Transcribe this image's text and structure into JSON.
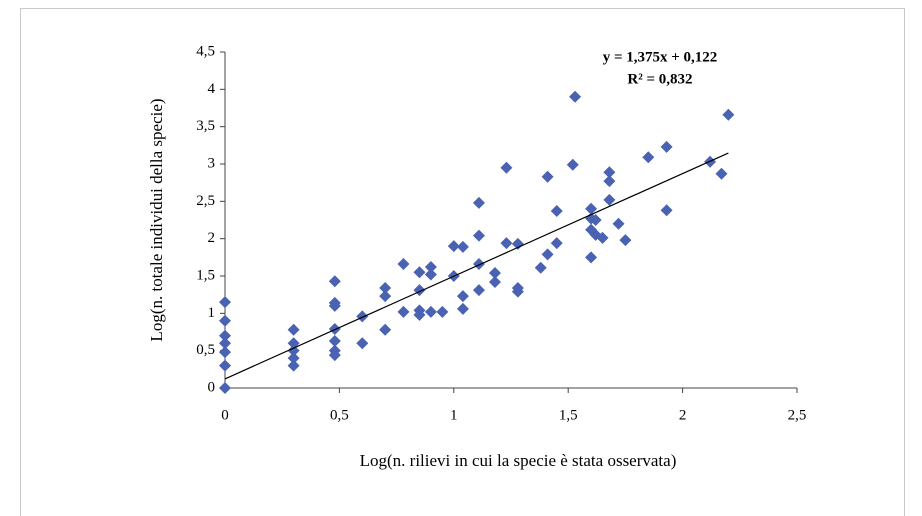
{
  "chart_data": {
    "type": "scatter",
    "x_label": "Log(n. rilievi in cui la specie è stata osservata)",
    "y_label": "Log(n. totale individui della specie)",
    "x": [
      0,
      0,
      0,
      0,
      0,
      0,
      0,
      0.3,
      0.3,
      0.3,
      0.3,
      0.3,
      0.48,
      0.48,
      0.48,
      0.48,
      0.48,
      0.48,
      0.48,
      0.6,
      0.6,
      0.7,
      0.7,
      0.7,
      0.78,
      0.78,
      0.85,
      0.85,
      0.85,
      0.85,
      0.9,
      0.9,
      0.9,
      0.95,
      1.0,
      1.0,
      1.04,
      1.04,
      1.04,
      1.11,
      1.11,
      1.11,
      1.11,
      1.18,
      1.18,
      1.23,
      1.23,
      1.28,
      1.28,
      1.28,
      1.38,
      1.41,
      1.41,
      1.45,
      1.45,
      1.52,
      1.53,
      1.6,
      1.6,
      1.6,
      1.6,
      1.62,
      1.62,
      1.65,
      1.68,
      1.68,
      1.68,
      1.72,
      1.75,
      1.85,
      1.93,
      1.93,
      2.12,
      2.17,
      2.2
    ],
    "values": [
      1.15,
      0.9,
      0.7,
      0.6,
      0.48,
      0.3,
      0,
      0.78,
      0.6,
      0.5,
      0.4,
      0.3,
      1.43,
      1.14,
      1.1,
      0.79,
      0.63,
      0.5,
      0.44,
      0.96,
      0.6,
      1.34,
      1.23,
      0.78,
      1.66,
      1.02,
      1.31,
      1.55,
      1.04,
      0.98,
      1.62,
      1.52,
      1.02,
      1.02,
      1.9,
      1.5,
      1.89,
      1.23,
      1.06,
      2.48,
      2.04,
      1.66,
      1.31,
      1.54,
      1.42,
      2.95,
      1.94,
      1.93,
      1.34,
      1.29,
      1.61,
      2.83,
      1.79,
      2.37,
      1.94,
      2.99,
      3.9,
      2.4,
      2.27,
      2.12,
      1.75,
      2.05,
      2.25,
      2.01,
      2.89,
      2.77,
      2.52,
      2.2,
      1.98,
      3.09,
      3.23,
      2.38,
      3.03,
      2.87,
      3.66
    ],
    "color": "#4a62b2",
    "xlim": [
      0,
      2.5
    ],
    "ylim": [
      0,
      4.5
    ],
    "xticks": [
      0,
      {
        "value": 0.5,
        "label": "0,5"
      },
      1,
      {
        "value": 1.5,
        "label": "1,5"
      },
      2,
      {
        "value": 2.5,
        "label": "2,5"
      }
    ],
    "yticks": [
      0,
      {
        "value": 0.5,
        "label": "0,5"
      },
      1,
      {
        "value": 1.5,
        "label": "1,5"
      },
      2,
      {
        "value": 2.5,
        "label": "2,5"
      },
      3,
      {
        "value": 3.5,
        "label": "3,5"
      },
      4,
      {
        "value": 4.5,
        "label": "4,5"
      }
    ],
    "trendline": {
      "equation": "y = 1,375x + 0,122",
      "r_squared": "R² = 0,832",
      "slope": 1.375,
      "intercept": 0.122,
      "x_range": [
        0,
        2.2
      ]
    }
  }
}
